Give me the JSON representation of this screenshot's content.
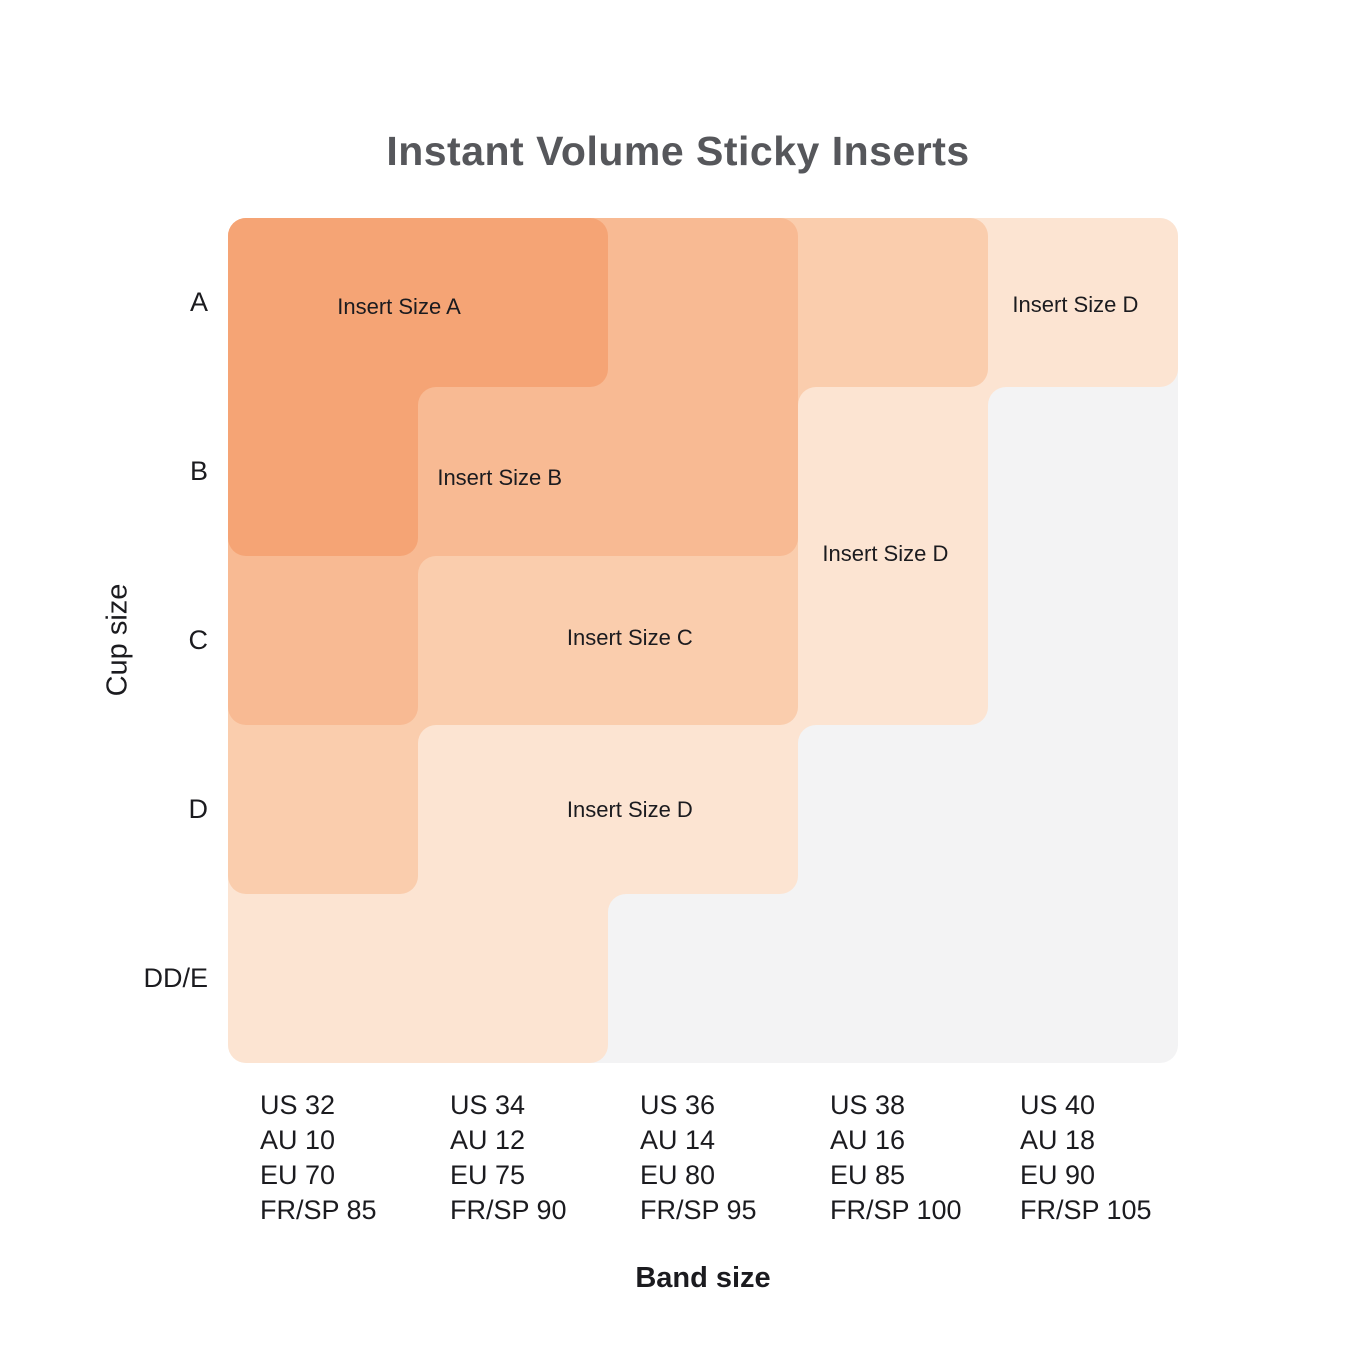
{
  "chart_data": {
    "type": "heatmap",
    "title": "Instant Volume Sticky Inserts",
    "xlabel": "Band size",
    "ylabel": "Cup size",
    "rows": [
      "A",
      "B",
      "C",
      "D",
      "DD/E"
    ],
    "columns": [
      {
        "lines": [
          "US 32",
          "AU 10",
          "EU 70",
          "FR/SP 85"
        ]
      },
      {
        "lines": [
          "US 34",
          "AU 12",
          "EU 75",
          "FR/SP 90"
        ]
      },
      {
        "lines": [
          "US 36",
          "AU 14",
          "EU 80",
          "FR/SP 95"
        ]
      },
      {
        "lines": [
          "US 38",
          "AU 16",
          "EU 85",
          "FR/SP 100"
        ]
      },
      {
        "lines": [
          "US 40",
          "AU 18",
          "EU 90",
          "FR/SP 105"
        ]
      }
    ],
    "matrix": [
      [
        "A",
        "A",
        "B",
        "C",
        "D"
      ],
      [
        "A",
        "B",
        "B",
        "D",
        null
      ],
      [
        "B",
        "C",
        "C",
        "D",
        null
      ],
      [
        "C",
        "D",
        "D",
        null,
        null
      ],
      [
        "D",
        "D",
        null,
        null,
        null
      ]
    ],
    "levels_light_to_dark": [
      "D",
      "C",
      "B",
      "A"
    ],
    "colors": {
      "A": "#F5A475",
      "B": "#F8BA93",
      "C": "#FACDAD",
      "D": "#FCE4D2",
      "empty": "#F3F3F4",
      "title": "#56575B",
      "text": "#1B1B1F"
    },
    "region_labels": [
      {
        "text": "Insert Size A",
        "x_pct": 18.0,
        "y_pct": 10.5
      },
      {
        "text": "Insert Size B",
        "x_pct": 28.6,
        "y_pct": 30.8
      },
      {
        "text": "Insert Size C",
        "x_pct": 42.3,
        "y_pct": 49.7
      },
      {
        "text": "Insert Size D",
        "x_pct": 42.3,
        "y_pct": 70.1
      },
      {
        "text": "Insert Size D",
        "x_pct": 69.2,
        "y_pct": 39.8
      },
      {
        "text": "Insert Size D",
        "x_pct": 89.2,
        "y_pct": 10.3
      }
    ],
    "corner_radius": 18
  }
}
